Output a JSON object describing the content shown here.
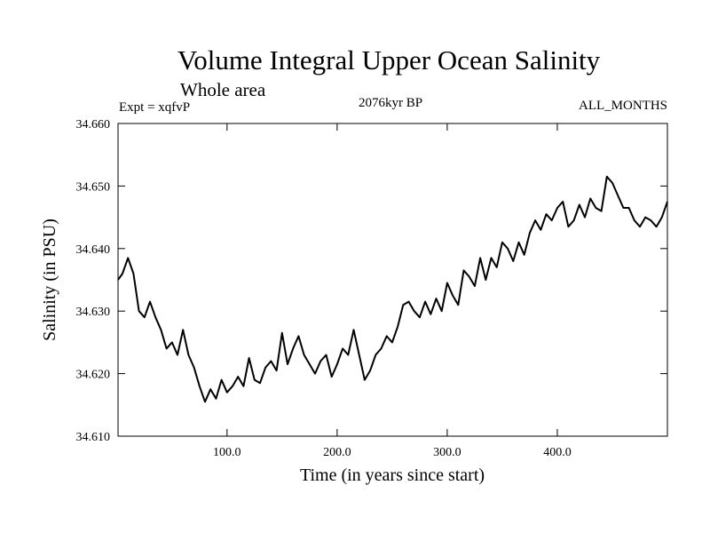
{
  "chart_data": {
    "type": "line",
    "title": "Volume Integral Upper Ocean Salinity",
    "subtitle": "Whole area",
    "experiment_label": "Expt = xqfvP",
    "period_label": "2076kyr BP",
    "months_label": "ALL_MONTHS",
    "xlabel": "Time (in years since start)",
    "ylabel": "Salinity (in PSU)",
    "xlim": [
      1,
      500
    ],
    "ylim": [
      34.61,
      34.66
    ],
    "x_ticks": [
      100,
      200,
      300,
      400
    ],
    "x_tick_labels": [
      "100.0",
      "200.0",
      "300.0",
      "400.0"
    ],
    "y_ticks": [
      34.61,
      34.62,
      34.63,
      34.64,
      34.65,
      34.66
    ],
    "y_tick_labels": [
      "34.610",
      "34.620",
      "34.630",
      "34.640",
      "34.650",
      "34.660"
    ],
    "line_color": "#000000",
    "series": [
      {
        "name": "salinity",
        "x": [
          1,
          5,
          10,
          15,
          20,
          25,
          30,
          35,
          40,
          45,
          50,
          55,
          60,
          65,
          70,
          75,
          80,
          85,
          90,
          95,
          100,
          105,
          110,
          115,
          120,
          125,
          130,
          135,
          140,
          145,
          150,
          155,
          160,
          165,
          170,
          175,
          180,
          185,
          190,
          195,
          200,
          205,
          210,
          215,
          220,
          225,
          230,
          235,
          240,
          245,
          250,
          255,
          260,
          265,
          270,
          275,
          280,
          285,
          290,
          295,
          300,
          305,
          310,
          315,
          320,
          325,
          330,
          335,
          340,
          345,
          350,
          355,
          360,
          365,
          370,
          375,
          380,
          385,
          390,
          395,
          400,
          405,
          410,
          415,
          420,
          425,
          430,
          435,
          440,
          445,
          450,
          455,
          460,
          465,
          470,
          475,
          480,
          485,
          490,
          495,
          500
        ],
        "values": [
          34.635,
          34.636,
          34.6385,
          34.636,
          34.63,
          34.629,
          34.6315,
          34.629,
          34.627,
          34.624,
          34.625,
          34.623,
          34.627,
          34.623,
          34.621,
          34.618,
          34.6155,
          34.6175,
          34.616,
          34.619,
          34.617,
          34.618,
          34.6195,
          34.618,
          34.6225,
          34.619,
          34.6185,
          34.621,
          34.622,
          34.6205,
          34.6265,
          34.6215,
          34.624,
          34.626,
          34.623,
          34.6215,
          34.62,
          34.622,
          34.623,
          34.6195,
          34.6215,
          34.624,
          34.623,
          34.627,
          34.623,
          34.619,
          34.6205,
          34.623,
          34.624,
          34.626,
          34.625,
          34.6275,
          34.631,
          34.6315,
          34.63,
          34.629,
          34.6315,
          34.6295,
          34.632,
          34.63,
          34.6345,
          34.6325,
          34.631,
          34.6365,
          34.6355,
          34.634,
          34.6385,
          34.635,
          34.6385,
          34.637,
          34.641,
          34.64,
          34.638,
          34.641,
          34.639,
          34.6425,
          34.6445,
          34.643,
          34.6455,
          34.6445,
          34.6465,
          34.6475,
          34.6435,
          34.6445,
          34.647,
          34.645,
          34.648,
          34.6465,
          34.646,
          34.6515,
          34.6505,
          34.6485,
          34.6465,
          34.6465,
          34.6445,
          34.6435,
          34.645,
          34.6445,
          34.6435,
          34.645,
          34.6475
        ]
      }
    ]
  }
}
